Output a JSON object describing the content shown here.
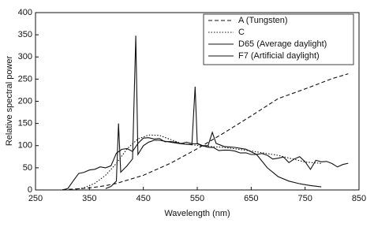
{
  "chart_data": {
    "type": "line",
    "x_label": "Wavelength (nm)",
    "y_label": "Relative spectral power",
    "xlim": [
      250,
      850
    ],
    "xticks": [
      250,
      350,
      450,
      550,
      650,
      750,
      850
    ],
    "ylim": [
      0,
      400
    ],
    "yticks": [
      0,
      50,
      100,
      150,
      200,
      250,
      300,
      350,
      400
    ],
    "legend": "upper right",
    "series": [
      {
        "name": "A (Tungsten)",
        "color": "#111111",
        "style": "dashed",
        "x": [
          300,
          320,
          340,
          360,
          380,
          400,
          450,
          500,
          550,
          600,
          650,
          700,
          750,
          800,
          830
        ],
        "values": [
          0.93,
          2,
          3.5,
          6.1,
          9.8,
          14.7,
          33.1,
          59.9,
          92.9,
          129,
          167,
          206,
          228,
          251,
          262
        ]
      },
      {
        "name": "C",
        "color": "#111111",
        "style": "dotted",
        "x": [
          320,
          340,
          360,
          380,
          400,
          420,
          440,
          460,
          480,
          500,
          520,
          560,
          600,
          650,
          700,
          750,
          780
        ],
        "values": [
          0,
          5,
          15,
          33,
          60,
          93,
          115,
          124,
          123,
          114,
          105,
          99,
          96,
          88,
          78,
          63,
          60
        ]
      },
      {
        "name": "D65 (Average daylight)",
        "color": "#111111",
        "style": "solid",
        "x": [
          300,
          310,
          320,
          330,
          340,
          350,
          360,
          370,
          380,
          390,
          400,
          410,
          420,
          430,
          440,
          450,
          460,
          470,
          480,
          490,
          500,
          510,
          520,
          530,
          540,
          550,
          560,
          570,
          580,
          590,
          600,
          610,
          620,
          630,
          640,
          650,
          660,
          670,
          680,
          690,
          700,
          710,
          720,
          730,
          740,
          750,
          760,
          770,
          780,
          790,
          800,
          810,
          820,
          830
        ],
        "values": [
          0.03,
          3.3,
          20.2,
          37.1,
          39.9,
          44.9,
          46.6,
          52.1,
          50.0,
          54.6,
          82.8,
          91.5,
          93.4,
          86.7,
          104.9,
          117.0,
          117.8,
          114.9,
          115.9,
          108.8,
          109.4,
          107.8,
          104.8,
          107.7,
          104.4,
          104.0,
          100,
          96.3,
          95.8,
          88.7,
          90.0,
          89.6,
          87.7,
          83.3,
          83.7,
          80.0,
          80.2,
          82.3,
          78.3,
          69.7,
          71.6,
          74.3,
          61.6,
          69.9,
          75.1,
          63.6,
          46.4,
          66.8,
          63.4,
          64.3,
          59.5,
          52.0,
          57.4,
          60.3
        ]
      },
      {
        "name": "F7 (Artificial daylight)",
        "color": "#111111",
        "style": "solid",
        "x": [
          380,
          390,
          400,
          404,
          408,
          420,
          430,
          436,
          440,
          450,
          460,
          470,
          480,
          500,
          520,
          540,
          546,
          550,
          560,
          570,
          578,
          585,
          600,
          620,
          640,
          660,
          680,
          700,
          720,
          740,
          760,
          780
        ],
        "values": [
          3,
          8,
          20,
          150,
          40,
          55,
          70,
          348,
          80,
          100,
          108,
          112,
          112,
          108,
          104,
          102,
          233,
          105,
          100,
          100,
          130,
          105,
          98,
          96,
          92,
          80,
          50,
          30,
          20,
          14,
          10,
          7
        ]
      }
    ]
  }
}
